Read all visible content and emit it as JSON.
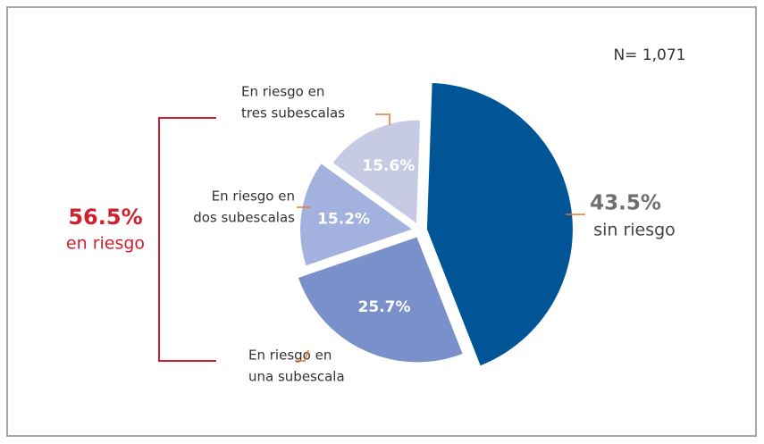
{
  "chart_data": {
    "type": "pie",
    "categories": [
      [
        "sin riesgo"
      ],
      [
        "En riesgo en",
        "una subescala"
      ],
      [
        "En riesgo en",
        "dos subescalas"
      ],
      [
        "En riesgo en",
        "tres subescalas"
      ]
    ],
    "values": [
      43.5,
      25.7,
      15.2,
      15.6
    ],
    "value_labels": [
      "43.5%",
      "25.7%",
      "15.2%",
      "15.6%"
    ],
    "colors": [
      "#005596",
      "#7990ca",
      "#a2b1dd",
      "#c6cbe3"
    ],
    "annotations": [
      "N= 1,071",
      "56.5%",
      "en riesgo"
    ]
  }
}
